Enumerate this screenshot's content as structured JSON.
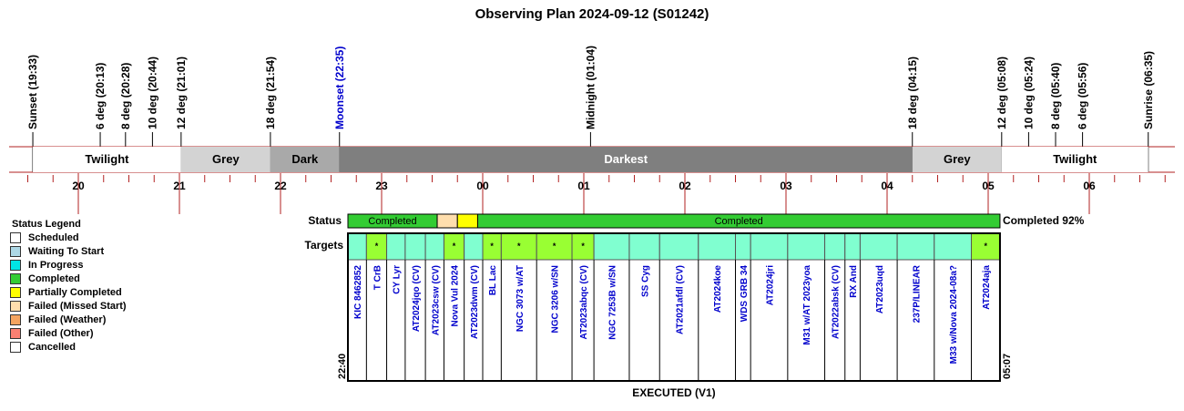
{
  "chart_data": {
    "type": "timeline",
    "title": "Observing Plan 2024-09-12 (S01242)",
    "events": [
      {
        "label": "Sunset (19:33)",
        "time": "19:33",
        "color": "#000000"
      },
      {
        "label": "6 deg (20:13)",
        "time": "20:13",
        "color": "#000000"
      },
      {
        "label": "8 deg (20:28)",
        "time": "20:28",
        "color": "#000000"
      },
      {
        "label": "10 deg (20:44)",
        "time": "20:44",
        "color": "#000000"
      },
      {
        "label": "12 deg (21:01)",
        "time": "21:01",
        "color": "#000000"
      },
      {
        "label": "18 deg (21:54)",
        "time": "21:54",
        "color": "#000000"
      },
      {
        "label": "Moonset (22:35)",
        "time": "22:35",
        "color": "#0000cc"
      },
      {
        "label": "Midnight (01:04)",
        "time": "01:04",
        "color": "#000000"
      },
      {
        "label": "18 deg (04:15)",
        "time": "04:15",
        "color": "#000000"
      },
      {
        "label": "12 deg (05:08)",
        "time": "05:08",
        "color": "#000000"
      },
      {
        "label": "10 deg (05:24)",
        "time": "05:24",
        "color": "#000000"
      },
      {
        "label": "8 deg (05:40)",
        "time": "05:40",
        "color": "#000000"
      },
      {
        "label": "6 deg (05:56)",
        "time": "05:56",
        "color": "#000000"
      },
      {
        "label": "Sunrise (06:35)",
        "time": "06:35",
        "color": "#000000"
      }
    ],
    "periods": [
      {
        "label": "Twilight",
        "start": "19:33",
        "end": "21:01",
        "fill": "#ffffff",
        "text_color": "#000000"
      },
      {
        "label": "Grey",
        "start": "21:01",
        "end": "21:54",
        "fill": "#d3d3d3",
        "text_color": "#000000"
      },
      {
        "label": "Dark",
        "start": "21:54",
        "end": "22:35",
        "fill": "#a9a9a9",
        "text_color": "#000000"
      },
      {
        "label": "Darkest",
        "start": "22:35",
        "end": "04:15",
        "fill": "#7f7f7f",
        "text_color": "#ffffff"
      },
      {
        "label": "Grey",
        "start": "04:15",
        "end": "05:08",
        "fill": "#d3d3d3",
        "text_color": "#000000"
      },
      {
        "label": "Twilight",
        "start": "05:08",
        "end": "06:35",
        "fill": "#ffffff",
        "text_color": "#000000"
      }
    ],
    "hour_ticks": [
      "20",
      "21",
      "22",
      "23",
      "00",
      "01",
      "02",
      "03",
      "04",
      "05",
      "06"
    ],
    "status_label": "Status",
    "targets_label": "Targets",
    "status_segments": [
      {
        "label": "Completed",
        "start": "22:40",
        "end": "23:33",
        "status": "Completed"
      },
      {
        "label": "",
        "start": "23:33",
        "end": "23:45",
        "status": "Failed (Missed Start)"
      },
      {
        "label": "",
        "start": "23:45",
        "end": "23:57",
        "status": "Partially Completed"
      },
      {
        "label": "Completed",
        "start": "23:57",
        "end": "05:07",
        "status": "Completed"
      }
    ],
    "completion_text": "Completed 92%",
    "start_time": "22:40",
    "end_time": "05:07",
    "footer": "EXECUTED (V1)",
    "targets": [
      {
        "name": "KIC 8462852",
        "start": "22:40",
        "end": "22:51",
        "marked": false,
        "color": "#80ffd0"
      },
      {
        "name": "T CrB",
        "start": "22:51",
        "end": "23:03",
        "marked": true,
        "color": "#99ff33"
      },
      {
        "name": "CY Lyr",
        "start": "23:03",
        "end": "23:14",
        "marked": false,
        "color": "#80ffd0"
      },
      {
        "name": "AT2024jqo (CV)",
        "start": "23:14",
        "end": "23:26",
        "marked": false,
        "color": "#80ffd0"
      },
      {
        "name": "AT2023csw (CV)",
        "start": "23:26",
        "end": "23:37",
        "marked": false,
        "color": "#80ffd0"
      },
      {
        "name": "Nova Vul 2024",
        "start": "23:37",
        "end": "23:49",
        "marked": true,
        "color": "#99ff33"
      },
      {
        "name": "AT2023dwm (CV)",
        "start": "23:49",
        "end": "24:00",
        "marked": false,
        "color": "#80ffd0"
      },
      {
        "name": "BL Lac",
        "start": "24:00",
        "end": "24:11",
        "marked": true,
        "color": "#99ff33"
      },
      {
        "name": "NGC 3073 w/AT",
        "start": "24:11",
        "end": "24:32",
        "marked": true,
        "color": "#99ff33"
      },
      {
        "name": "NGC 3206 w/SN",
        "start": "24:32",
        "end": "24:53",
        "marked": true,
        "color": "#99ff33"
      },
      {
        "name": "AT2023abqc (CV)",
        "start": "24:53",
        "end": "25:06",
        "marked": true,
        "color": "#99ff33"
      },
      {
        "name": "NGC 7253B w/SN",
        "start": "25:06",
        "end": "25:27",
        "marked": false,
        "color": "#80ffd0"
      },
      {
        "name": "SS Cyg",
        "start": "25:27",
        "end": "25:45",
        "marked": false,
        "color": "#80ffd0"
      },
      {
        "name": "AT2021afdl (CV)",
        "start": "25:45",
        "end": "26:08",
        "marked": false,
        "color": "#80ffd0"
      },
      {
        "name": "AT2024koe",
        "start": "26:08",
        "end": "26:30",
        "marked": false,
        "color": "#80ffd0"
      },
      {
        "name": "WDS GRB 34",
        "start": "26:30",
        "end": "26:39",
        "marked": false,
        "color": "#80ffd0"
      },
      {
        "name": "AT2024jri",
        "start": "26:39",
        "end": "27:01",
        "marked": false,
        "color": "#80ffd0"
      },
      {
        "name": "M31 w/AT 2023yoa",
        "start": "27:01",
        "end": "27:23",
        "marked": false,
        "color": "#80ffd0"
      },
      {
        "name": "AT2022absk (CV)",
        "start": "27:23",
        "end": "27:35",
        "marked": false,
        "color": "#80ffd0"
      },
      {
        "name": "RX And",
        "start": "27:35",
        "end": "27:44",
        "marked": false,
        "color": "#80ffd0"
      },
      {
        "name": "AT2023uqd",
        "start": "27:44",
        "end": "28:06",
        "marked": false,
        "color": "#80ffd0"
      },
      {
        "name": "237P/LINEAR",
        "start": "28:06",
        "end": "28:28",
        "marked": false,
        "color": "#80ffd0"
      },
      {
        "name": "M33 w/Nova 2024-08a?",
        "start": "28:28",
        "end": "28:50",
        "marked": false,
        "color": "#80ffd0"
      },
      {
        "name": "AT2024aja",
        "start": "28:50",
        "end": "29:07",
        "marked": true,
        "color": "#99ff33"
      }
    ],
    "legend_title": "Status Legend",
    "legend": [
      {
        "label": "Scheduled",
        "color": "#ffffff"
      },
      {
        "label": "Waiting To Start",
        "color": "#add8e6"
      },
      {
        "label": "In Progress",
        "color": "#00e5e5"
      },
      {
        "label": "Completed",
        "color": "#33cc33"
      },
      {
        "label": "Partially Completed",
        "color": "#ffff00"
      },
      {
        "label": "Failed (Missed Start)",
        "color": "#ffdead"
      },
      {
        "label": "Failed (Weather)",
        "color": "#f4a460"
      },
      {
        "label": "Failed (Other)",
        "color": "#fa8072"
      },
      {
        "label": "Cancelled",
        "color": "#ffffff"
      }
    ],
    "status_colors": {
      "Completed": "#33cc33",
      "Partially Completed": "#ffff00",
      "Failed (Missed Start)": "#ffdead"
    },
    "marker": "*"
  }
}
